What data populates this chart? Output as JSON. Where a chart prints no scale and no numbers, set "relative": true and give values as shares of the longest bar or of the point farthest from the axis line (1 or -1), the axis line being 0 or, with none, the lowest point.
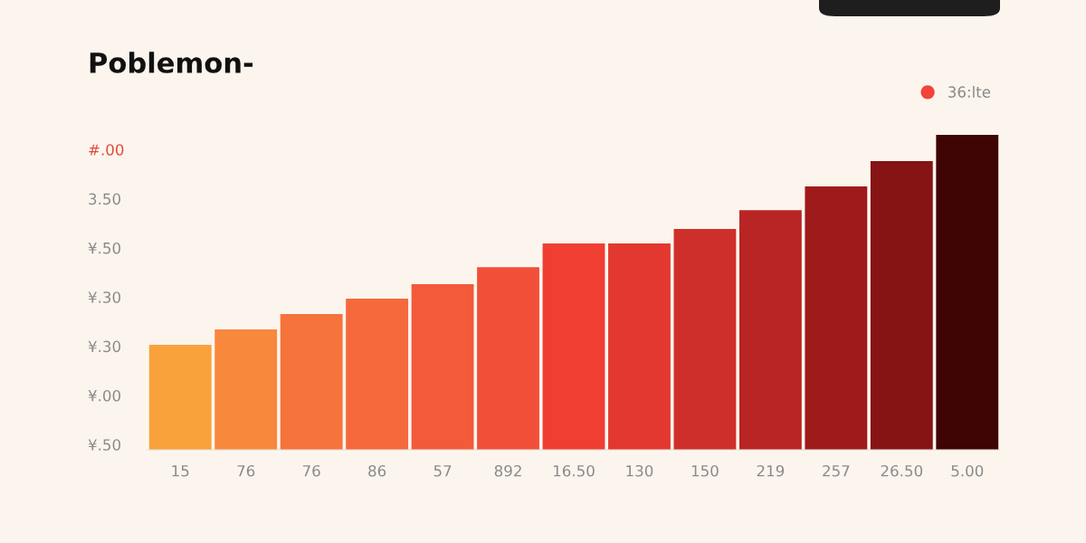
{
  "chart_data": {
    "type": "bar",
    "title": "Poblemon-",
    "relative": true,
    "legend": "top right",
    "categories": [
      "15",
      "76",
      "76",
      "86",
      "57",
      "892",
      "16.50",
      "130",
      "150",
      "219",
      "257",
      "26.50",
      "5.00"
    ],
    "series": [
      {
        "name": "36:lte",
        "color": "#f4433a",
        "colors": [
          "#f9a23c",
          "#f8883c",
          "#f6733c",
          "#f5693c",
          "#f35a3a",
          "#f24f38",
          "#f03e33",
          "#e2382f",
          "#cf2f2a",
          "#b92424",
          "#9f1a1a",
          "#861414",
          "#3f0404"
        ],
        "values": [
          0.333,
          0.382,
          0.431,
          0.48,
          0.526,
          0.58,
          0.655,
          0.655,
          0.701,
          0.761,
          0.836,
          0.917,
          1
        ]
      }
    ],
    "annotations": [
      "#.00",
      "3.50",
      "¥.50",
      "¥.30",
      "¥.30",
      "¥.00",
      "¥.50"
    ]
  }
}
